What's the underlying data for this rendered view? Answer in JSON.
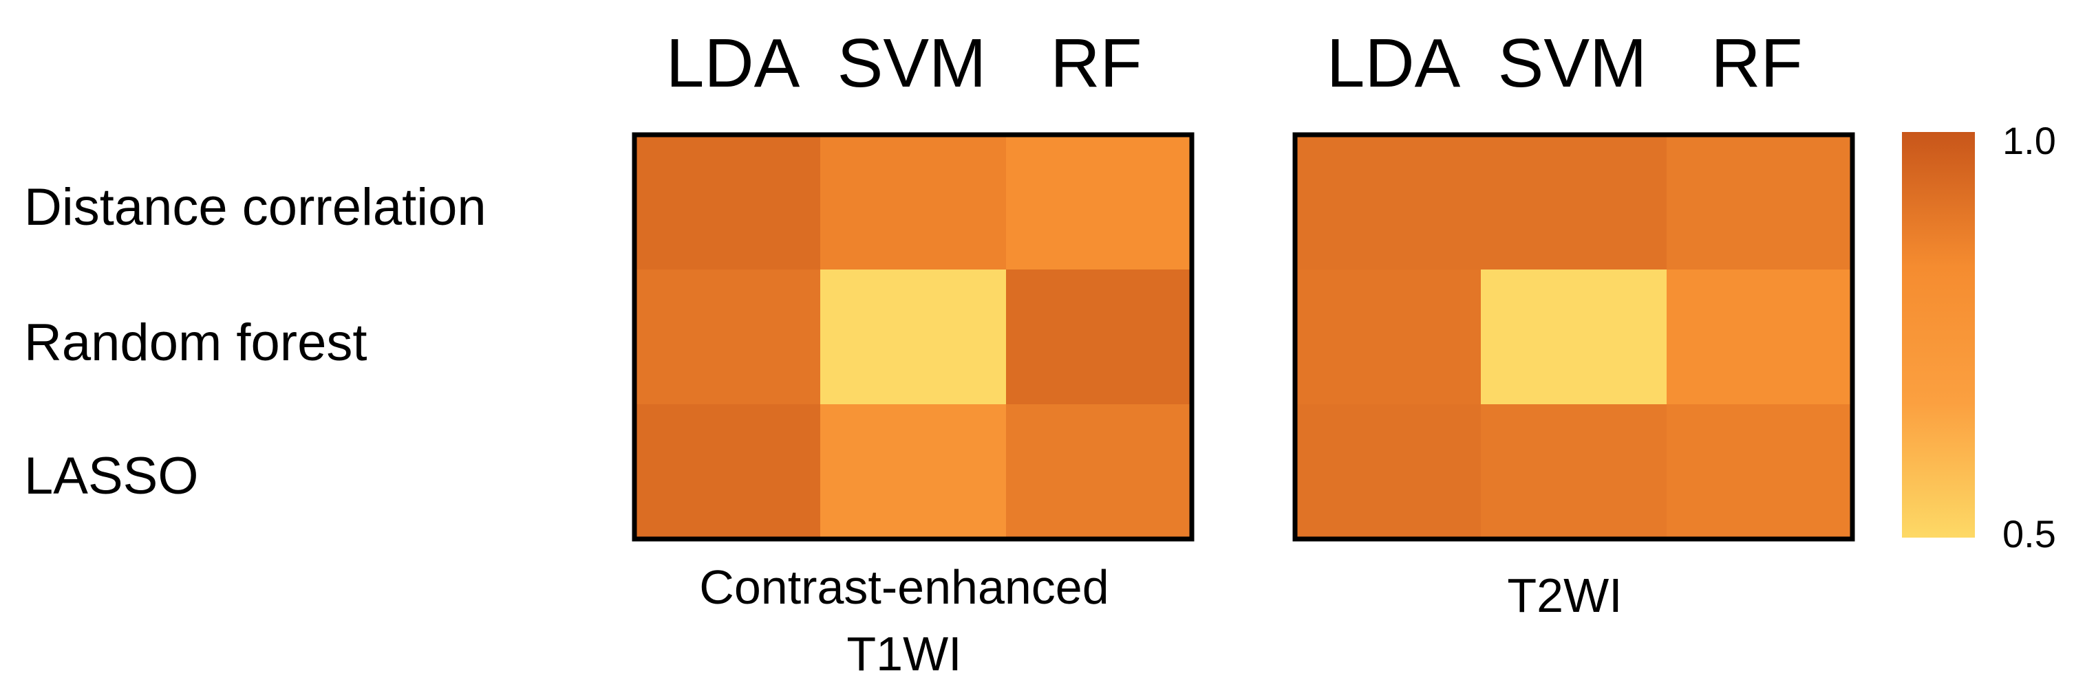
{
  "chart_data": {
    "type": "heatmap",
    "rows": [
      "Distance correlation",
      "Random forest",
      "LASSO"
    ],
    "columns": [
      "LDA",
      "SVM",
      "RF"
    ],
    "panels": [
      {
        "caption": [
          "Contrast-enhanced",
          "T1WI"
        ],
        "values": [
          [
            0.93,
            0.86,
            0.81
          ],
          [
            0.9,
            0.5,
            0.93
          ],
          [
            0.93,
            0.77,
            0.88
          ]
        ]
      },
      {
        "caption": [
          "T2WI"
        ],
        "values": [
          [
            0.91,
            0.91,
            0.88
          ],
          [
            0.9,
            0.5,
            0.8
          ],
          [
            0.91,
            0.89,
            0.87
          ]
        ]
      }
    ],
    "colorbar": {
      "min": 0.5,
      "max": 1.0,
      "tick_labels": [
        "1.0",
        "0.5"
      ],
      "colors": [
        "#fdd966",
        "#fba040",
        "#f58c30",
        "#c8561a"
      ]
    },
    "grid": false,
    "legend": "right"
  }
}
